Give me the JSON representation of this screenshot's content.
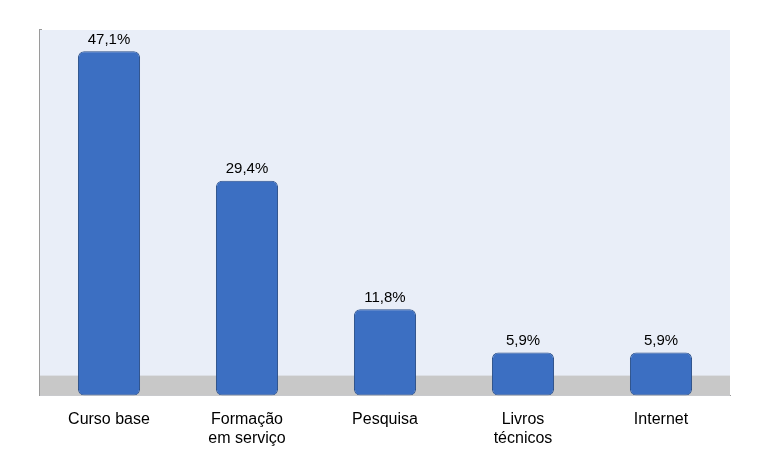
{
  "chart_data": {
    "type": "bar",
    "categories": [
      "Curso base",
      "Formação em serviço",
      "Pesquisa",
      "Livros técnicos",
      "Internet"
    ],
    "values": [
      47.1,
      29.4,
      11.8,
      5.9,
      5.9
    ],
    "value_labels": [
      "47,1%",
      "29,4%",
      "11,8%",
      "5,9%",
      "5,9%"
    ],
    "color": "#3c6fc2",
    "ylim": [
      0,
      50
    ],
    "grid": false,
    "data_labels": true,
    "tick_labels": "x"
  }
}
